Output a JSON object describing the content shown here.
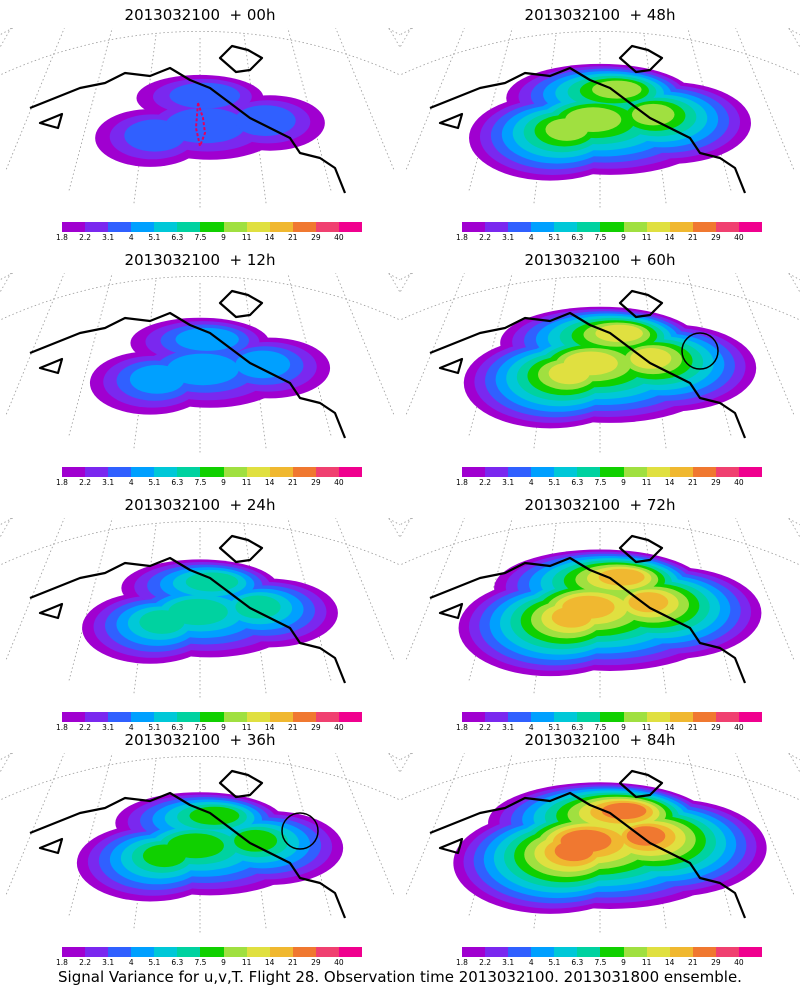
{
  "colorbar": {
    "labels": [
      "1.8",
      "2.2",
      "3.1",
      "4",
      "5.1",
      "6.3",
      "7.5",
      "9",
      "11",
      "14",
      "21",
      "29",
      "40"
    ],
    "colors": [
      "#a000d0",
      "#7a28ef",
      "#3060ff",
      "#00a0ff",
      "#00c8d8",
      "#00d2a0",
      "#10d000",
      "#a0e040",
      "#e0e040",
      "#f0b830",
      "#f07830",
      "#f04070",
      "#f0008e"
    ]
  },
  "panels": [
    {
      "title": "2013032100  + 00h",
      "fill_level": 0.05,
      "marker": "flight-track"
    },
    {
      "title": "2013032100  + 12h",
      "fill_level": 0.15,
      "marker": "none"
    },
    {
      "title": "2013032100  + 24h",
      "fill_level": 0.3,
      "marker": "none"
    },
    {
      "title": "2013032100  + 36h",
      "fill_level": 0.4,
      "marker": "circle"
    },
    {
      "title": "2013032100  + 48h",
      "fill_level": 0.55,
      "marker": "none"
    },
    {
      "title": "2013032100  + 60h",
      "fill_level": 0.65,
      "marker": "circle"
    },
    {
      "title": "2013032100  + 72h",
      "fill_level": 0.75,
      "marker": "none"
    },
    {
      "title": "2013032100  + 84h",
      "fill_level": 0.85,
      "marker": "none"
    }
  ],
  "footer": "Signal Variance for u,v,T. Flight 28. Observation time 2013032100. 2013031800 ensemble."
}
